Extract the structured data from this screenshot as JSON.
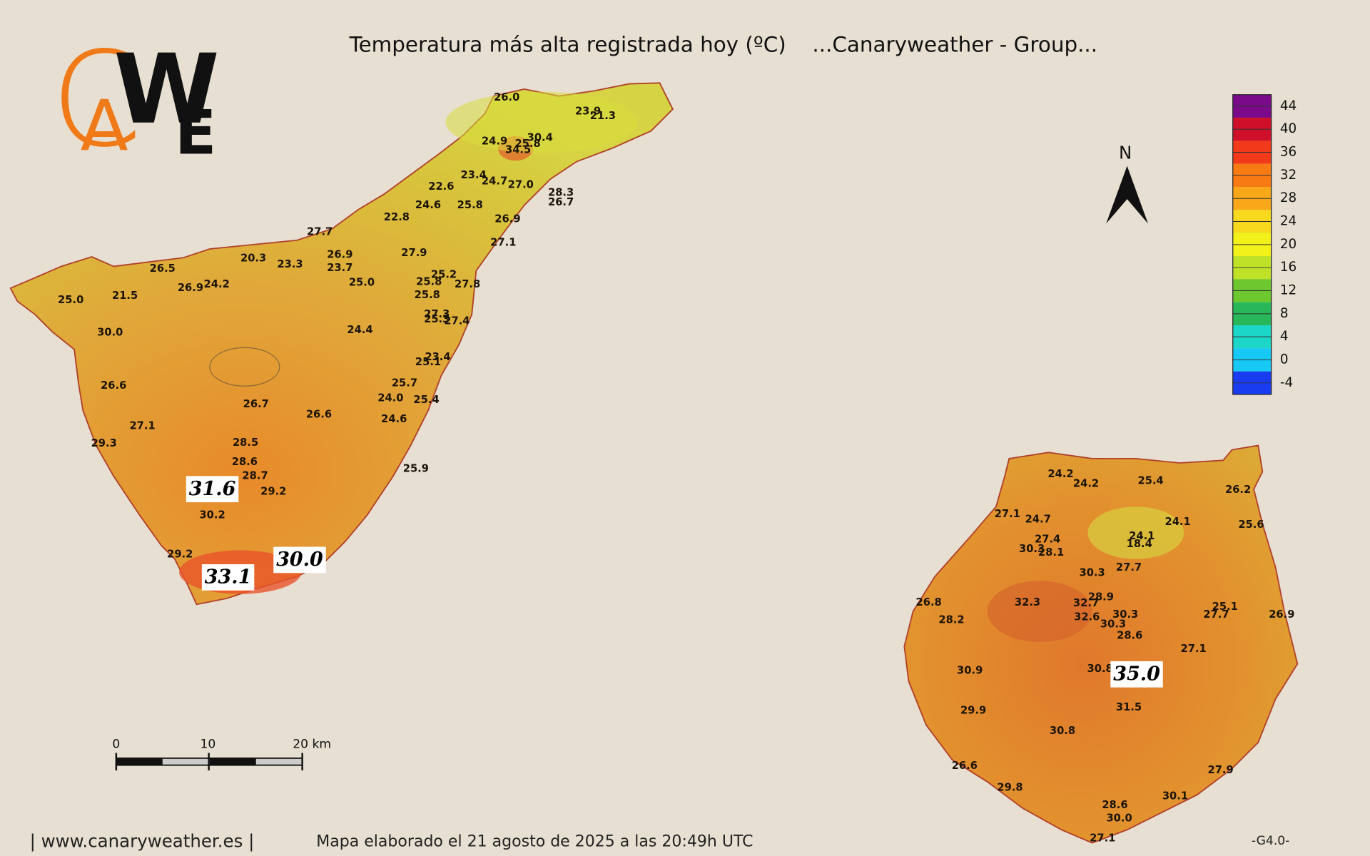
{
  "header": {
    "title": "Temperatura más alta registrada hoy (ºC)",
    "group": "...Canaryweather - Group..."
  },
  "logo": {
    "letters": [
      "C",
      "A",
      "W",
      "E"
    ]
  },
  "map": {
    "tenerife_labels": [
      "26.0",
      "23.9",
      "21.3",
      "24.9",
      "30.4",
      "25.8",
      "34.5",
      "23.4",
      "24.7",
      "27.0",
      "22.6",
      "28.3",
      "26.7",
      "24.6",
      "25.8",
      "22.8",
      "26.9",
      "27.7",
      "27.1",
      "20.3",
      "27.9",
      "26.9",
      "23.3",
      "26.5",
      "23.7",
      "25.2",
      "25.0",
      "25.8",
      "27.8",
      "24.2",
      "26.9",
      "25.8",
      "21.5",
      "25.0",
      "27.3",
      "25.3",
      "27.4",
      "30.0",
      "24.4",
      "23.4",
      "25.1",
      "25.7",
      "26.6",
      "24.0",
      "25.4",
      "26.7",
      "26.6",
      "24.6",
      "27.1",
      "29.3",
      "28.5",
      "25.9",
      "28.6",
      "28.7",
      "29.2",
      "30.2",
      "29.2"
    ],
    "tenerife_highlights": [
      "31.6",
      "33.1",
      "30.0"
    ],
    "gran_canaria_labels": [
      "24.2",
      "24.2",
      "25.4",
      "26.2",
      "27.1",
      "24.7",
      "24.1",
      "25.6",
      "24.1",
      "27.4",
      "18.4",
      "30.3",
      "28.1",
      "27.7",
      "30.3",
      "28.9",
      "26.8",
      "32.3",
      "32.7",
      "25.1",
      "27.7",
      "26.9",
      "30.3",
      "28.2",
      "32.6",
      "30.3",
      "28.6",
      "27.1",
      "30.8",
      "30.9",
      "31.5",
      "29.9",
      "30.8",
      "26.6",
      "27.9",
      "29.8",
      "30.1",
      "28.6",
      "30.0",
      "27.1"
    ],
    "gran_canaria_highlights": [
      "35.0"
    ]
  },
  "legend": {
    "ticks": [
      44,
      40,
      36,
      32,
      28,
      24,
      20,
      16,
      12,
      8,
      4,
      0,
      -4
    ],
    "colors": [
      "#7a0a8a",
      "#d0102a",
      "#f23a1a",
      "#f87a12",
      "#f9a81a",
      "#f8d81c",
      "#f2f21a",
      "#bfe228",
      "#6cc82e",
      "#28b85a",
      "#1cd6c8",
      "#16c8f4",
      "#1a3cf0"
    ]
  },
  "north": "N",
  "scale_bar": {
    "labels": [
      "0",
      "10",
      "20 km"
    ]
  },
  "footer": {
    "site": "| www.canaryweather.es |",
    "date": "Mapa elaborado el 21 agosto de 2025 a las 20:49h UTC",
    "version": "-G4.0-"
  }
}
